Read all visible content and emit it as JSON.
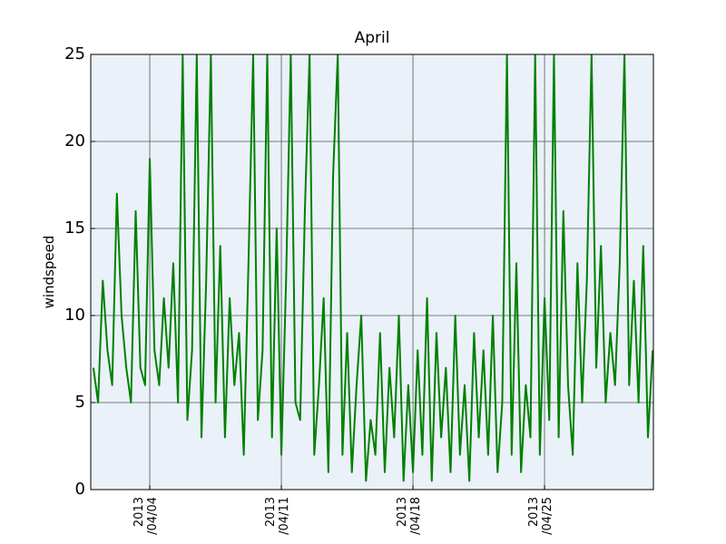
{
  "chart_data": {
    "type": "line",
    "title": "April",
    "y_label": "windspeed",
    "x": [
      1,
      1.25,
      1.5,
      1.75,
      2,
      2.25,
      2.5,
      2.75,
      3,
      3.25,
      3.5,
      3.75,
      4,
      4.25,
      4.5,
      4.75,
      5,
      5.25,
      5.5,
      5.75,
      6,
      6.25,
      6.5,
      6.75,
      7,
      7.25,
      7.5,
      7.75,
      8,
      8.25,
      8.5,
      8.75,
      9,
      9.25,
      9.5,
      9.75,
      10,
      10.25,
      10.5,
      10.75,
      11,
      11.25,
      11.5,
      11.75,
      12,
      12.25,
      12.5,
      12.75,
      13,
      13.25,
      13.5,
      13.75,
      14,
      14.25,
      14.5,
      14.75,
      15,
      15.25,
      15.5,
      15.75,
      16,
      16.25,
      16.5,
      16.75,
      17,
      17.25,
      17.5,
      17.75,
      18,
      18.25,
      18.5,
      18.75,
      19,
      19.25,
      19.5,
      19.75,
      20,
      20.25,
      20.5,
      20.75,
      21,
      21.25,
      21.5,
      21.75,
      22,
      22.25,
      22.5,
      22.75,
      23,
      23.25,
      23.5,
      23.75,
      24,
      24.25,
      24.5,
      24.75,
      25,
      25.25,
      25.5,
      25.75,
      26,
      26.25,
      26.5,
      26.75,
      27,
      27.25,
      27.5,
      27.75,
      28,
      28.25,
      28.5,
      28.75,
      29,
      29.25,
      29.5,
      29.75,
      30,
      30.25,
      30.5,
      30.75
    ],
    "values": [
      7,
      5,
      12,
      8,
      6,
      17,
      10,
      7,
      5,
      16,
      7,
      6,
      19,
      8,
      6,
      11,
      7,
      13,
      5,
      25,
      4,
      8,
      25,
      3,
      12,
      25,
      5,
      14,
      3,
      11,
      6,
      9,
      2,
      13,
      25,
      4,
      8,
      25,
      3,
      15,
      2,
      12,
      25,
      5,
      4,
      16,
      25,
      2,
      6,
      11,
      1,
      18,
      25,
      2,
      9,
      1,
      6,
      10,
      0.5,
      4,
      2,
      9,
      1,
      7,
      3,
      10,
      0.5,
      6,
      1,
      8,
      2,
      11,
      0.5,
      9,
      3,
      7,
      1,
      10,
      2,
      6,
      0.5,
      9,
      3,
      8,
      2,
      10,
      1,
      5,
      25,
      2,
      13,
      1,
      6,
      3,
      25,
      2,
      11,
      4,
      25,
      3,
      16,
      6,
      2,
      13,
      5,
      12,
      25,
      7,
      14,
      5,
      9,
      6,
      13,
      25,
      6,
      12,
      5,
      14,
      3,
      8
    ],
    "color": "#008000",
    "xlim": [
      0.86,
      30.79
    ],
    "xticks": [
      {
        "value": 4,
        "label": "2013\n/04/04"
      },
      {
        "value": 11,
        "label": "2013\n/04/11"
      },
      {
        "value": 18,
        "label": "2013\n/04/18"
      },
      {
        "value": 25,
        "label": "2013\n/04/25"
      }
    ],
    "ylim": [
      0,
      25
    ],
    "yticks": [
      0,
      5,
      10,
      15,
      20,
      25
    ],
    "grid": true
  }
}
